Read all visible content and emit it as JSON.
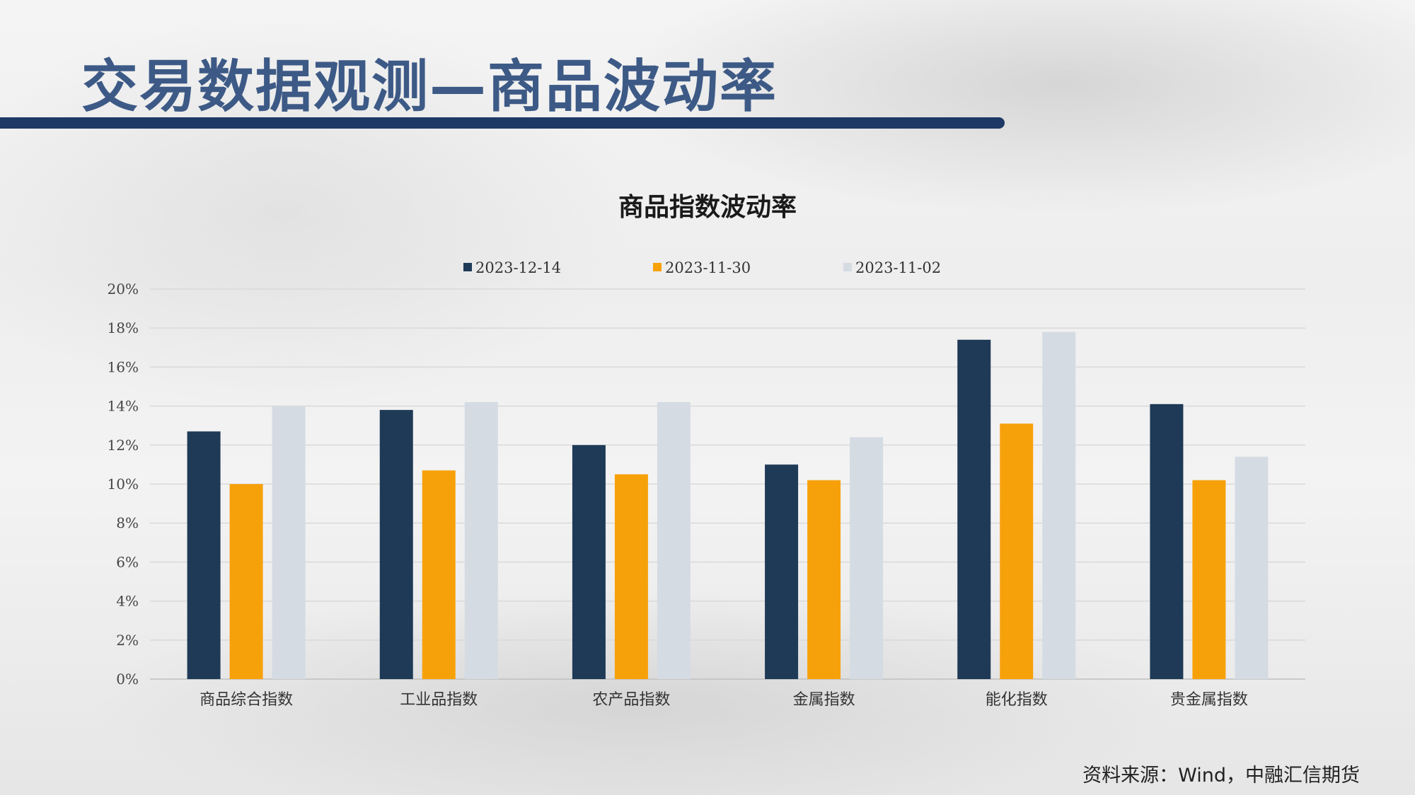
{
  "page": {
    "title": "交易数据观测—商品波动率",
    "source": "资料来源：Wind，中融汇信期货"
  },
  "chart_data": {
    "type": "bar",
    "title": "商品指数波动率",
    "categories": [
      "商品综合指数",
      "工业品指数",
      "农产品指数",
      "金属指数",
      "能化指数",
      "贵金属指数"
    ],
    "series": [
      {
        "name": "2023-12-14",
        "color": "#1f3a57",
        "values": [
          12.7,
          13.8,
          12.0,
          11.0,
          17.4,
          14.1
        ]
      },
      {
        "name": "2023-11-30",
        "color": "#f7a10a",
        "values": [
          10.0,
          10.7,
          10.5,
          10.2,
          13.1,
          10.2
        ]
      },
      {
        "name": "2023-11-02",
        "color": "#d5dbe3",
        "values": [
          14.0,
          14.2,
          14.2,
          12.4,
          17.8,
          11.4
        ]
      }
    ],
    "ylim": [
      0,
      20
    ],
    "yticks": [
      "0%",
      "2%",
      "4%",
      "6%",
      "8%",
      "10%",
      "12%",
      "14%",
      "16%",
      "18%",
      "20%"
    ],
    "grid": true,
    "legend": "top-center"
  }
}
